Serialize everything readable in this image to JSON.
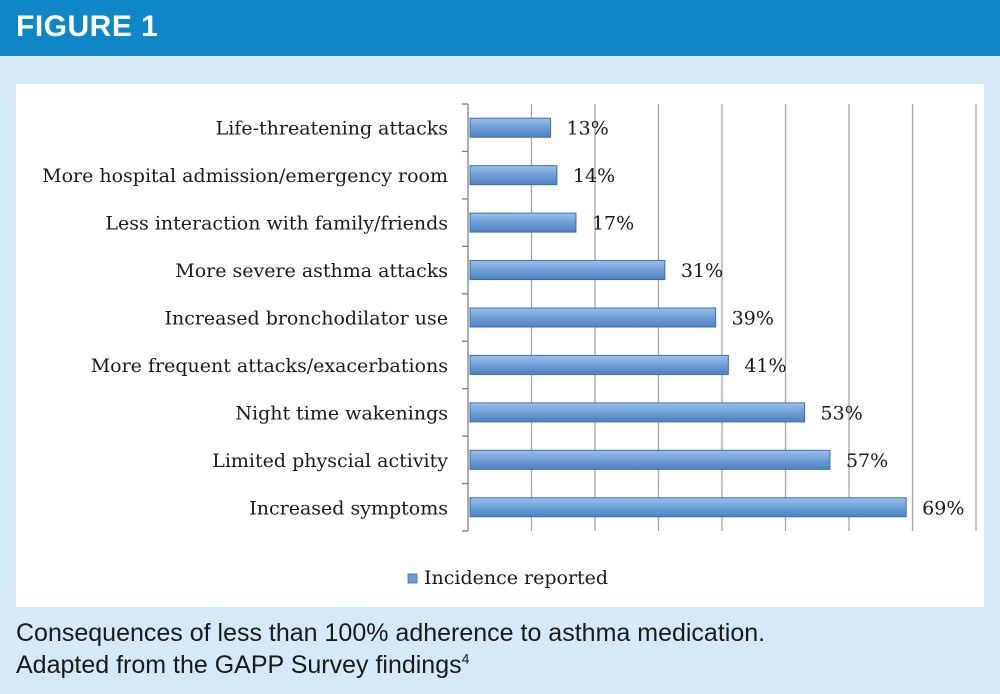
{
  "header": {
    "title": "FIGURE 1"
  },
  "caption": {
    "line1": "Consequences of less than 100% adherence to asthma medication.",
    "line2": "Adapted from the GAPP Survey findings",
    "footnote": "4"
  },
  "colors": {
    "header_bg": "#0f86c6",
    "page_bg": "#d6e9f6",
    "bar_fill": "#6a9bd4",
    "bar_stroke": "#3a6ea8",
    "gridline": "#a6a6a6"
  },
  "chart_data": {
    "type": "bar",
    "orientation": "horizontal",
    "categories": [
      "Life-threatening attacks",
      "More hospital admission/emergency room",
      "Less interaction with family/friends",
      "More severe asthma attacks",
      "Increased bronchodilator use",
      "More frequent attacks/exacerbations",
      "Night time wakenings",
      "Limited physcial activity",
      "Increased symptoms"
    ],
    "series": [
      {
        "name": "Incidence reported",
        "values": [
          13,
          14,
          17,
          31,
          39,
          41,
          53,
          57,
          69
        ],
        "labels": [
          "13%",
          "14%",
          "17%",
          "31%",
          "39%",
          "41%",
          "53%",
          "57%",
          "69%"
        ]
      }
    ],
    "xlim": [
      0,
      80
    ],
    "grid": true,
    "legend": "bottom"
  }
}
